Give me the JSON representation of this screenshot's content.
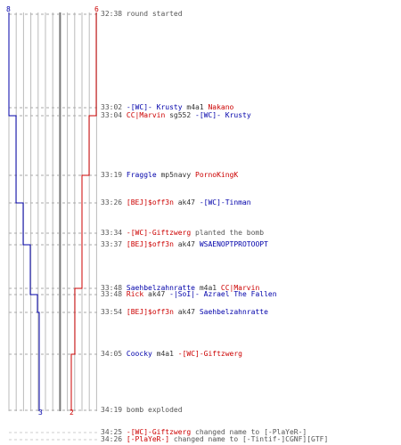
{
  "colors": {
    "red": "#cc0000",
    "blue": "#0000aa",
    "text": "#333333",
    "grid": "#bbbbbb",
    "dash": "#aaaaaa"
  },
  "scores": {
    "blue_start": "8",
    "red_start": "6",
    "blue_end": "3",
    "red_end": "2"
  },
  "events": [
    {
      "time": "32:38",
      "text": "round started"
    },
    {
      "time": "33:02",
      "killer": "-[WC]- Krusty",
      "killer_team": "blue",
      "weapon": "m4a1",
      "victim": "Nakano",
      "victim_team": "red"
    },
    {
      "time": "33:04",
      "killer": "CC|Marvin",
      "killer_team": "red",
      "weapon": "sg552",
      "victim": "-[WC]- Krusty",
      "victim_team": "blue"
    },
    {
      "time": "33:19",
      "killer": "Fraggle",
      "killer_team": "blue",
      "weapon": "mp5navy",
      "victim": "PornoKingK",
      "victim_team": "red"
    },
    {
      "time": "33:26",
      "killer": "[BEJ]$off3n",
      "killer_team": "red",
      "weapon": "ak47",
      "victim": "-[WC]-Tinman",
      "victim_team": "blue"
    },
    {
      "time": "33:34",
      "player": "-[WC]-Giftzwerg",
      "player_team": "red",
      "text": "planted the bomb"
    },
    {
      "time": "33:37",
      "killer": "[BEJ]$off3n",
      "killer_team": "red",
      "weapon": "ak47",
      "victim": "WSAENOPTPROTOOPT",
      "victim_team": "blue"
    },
    {
      "time": "33:48",
      "killer": "Saehbelzahnratte",
      "killer_team": "blue",
      "weapon": "m4a1",
      "victim": "CC|Marvin",
      "victim_team": "red"
    },
    {
      "time": "33:48",
      "killer": "Rick",
      "killer_team": "red",
      "weapon": "ak47",
      "victim": "-|SoI|- Azrael The Fallen",
      "victim_team": "blue"
    },
    {
      "time": "33:54",
      "killer": "[BEJ]$off3n",
      "killer_team": "red",
      "weapon": "ak47",
      "victim": "Saehbelzahnratte",
      "victim_team": "blue"
    },
    {
      "time": "34:05",
      "killer": "Coocky",
      "killer_team": "blue",
      "weapon": "m4a1",
      "victim": "-[WC]-Giftzwerg",
      "victim_team": "red"
    },
    {
      "time": "34:19",
      "text": "bomb exploded"
    },
    {
      "time": "34:25",
      "player": "-[WC]-Giftzwerg",
      "player_team": "red",
      "text": "changed name to [-PlaYeR-]"
    },
    {
      "time": "34:26",
      "player": "[-PlaYeR-]",
      "player_team": "red",
      "text": "changed name to [-Tintif-]CGNF][GTF]"
    }
  ]
}
